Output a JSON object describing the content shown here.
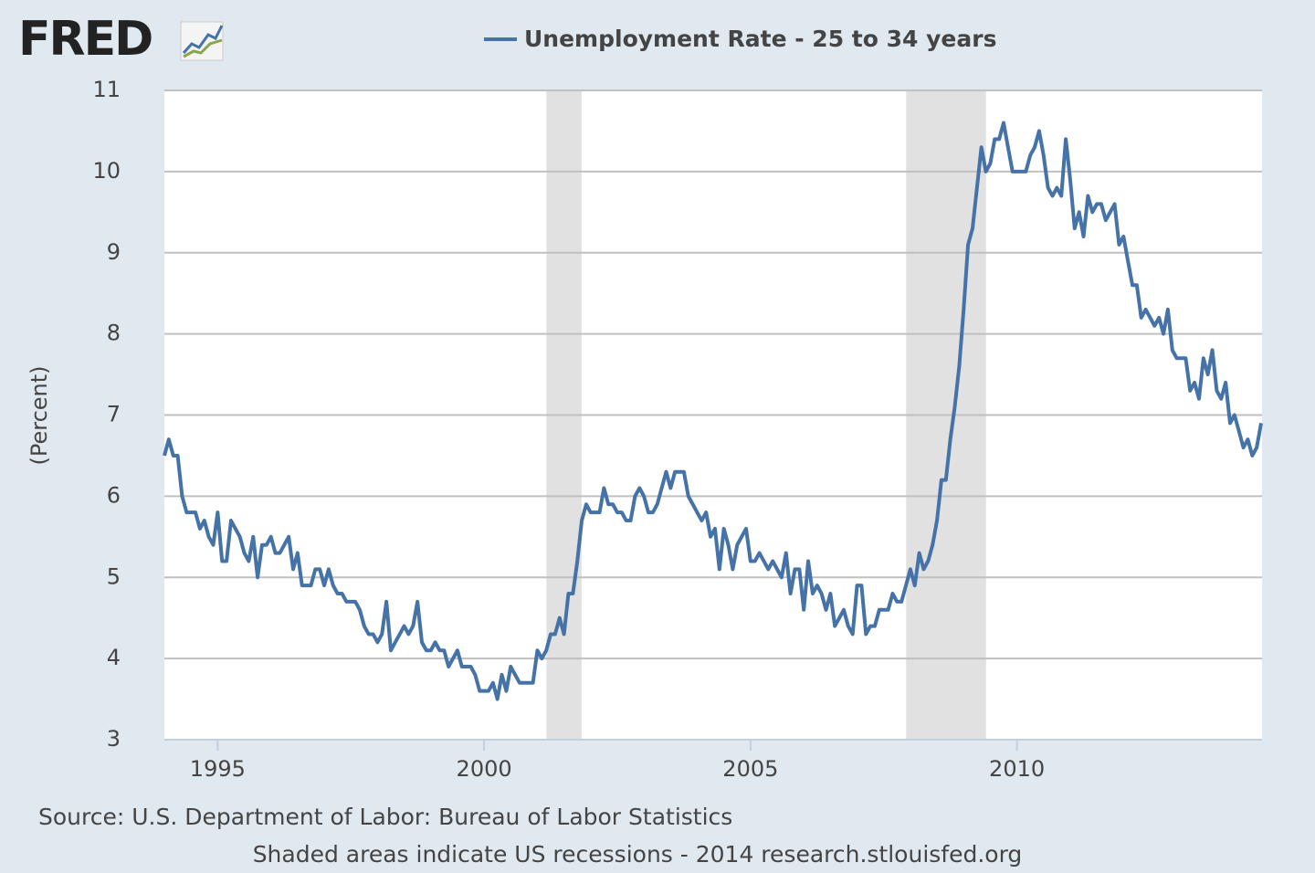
{
  "logo": "FRED",
  "chart_data": {
    "type": "line",
    "ylabel": "(Percent)",
    "source": "Source: U.S. Department of Labor: Bureau of Labor Statistics",
    "note": "Shaded areas indicate US recessions - 2014 research.stlouisfed.org",
    "xlim": [
      1994,
      2014.6
    ],
    "xticks": [
      1995,
      2000,
      2005,
      2010
    ],
    "ylim": [
      3,
      11
    ],
    "yticks": [
      3,
      4,
      5,
      6,
      7,
      8,
      9,
      10,
      11
    ],
    "grid": true,
    "recession_color": "#e1e1e1",
    "recessions": [
      [
        2001.17,
        2001.83
      ],
      [
        2007.92,
        2009.42
      ]
    ],
    "x": [
      1994,
      1994.083,
      1994.167,
      1994.25,
      1994.333,
      1994.417,
      1994.5,
      1994.583,
      1994.667,
      1994.75,
      1994.833,
      1994.917,
      1995,
      1995.083,
      1995.167,
      1995.25,
      1995.333,
      1995.417,
      1995.5,
      1995.583,
      1995.667,
      1995.75,
      1995.833,
      1995.917,
      1996,
      1996.083,
      1996.167,
      1996.25,
      1996.333,
      1996.417,
      1996.5,
      1996.583,
      1996.667,
      1996.75,
      1996.833,
      1996.917,
      1997,
      1997.083,
      1997.167,
      1997.25,
      1997.333,
      1997.417,
      1997.5,
      1997.583,
      1997.667,
      1997.75,
      1997.833,
      1997.917,
      1998,
      1998.083,
      1998.167,
      1998.25,
      1998.333,
      1998.417,
      1998.5,
      1998.583,
      1998.667,
      1998.75,
      1998.833,
      1998.917,
      1999,
      1999.083,
      1999.167,
      1999.25,
      1999.333,
      1999.417,
      1999.5,
      1999.583,
      1999.667,
      1999.75,
      1999.833,
      1999.917,
      2000,
      2000.083,
      2000.167,
      2000.25,
      2000.333,
      2000.417,
      2000.5,
      2000.583,
      2000.667,
      2000.75,
      2000.833,
      2000.917,
      2001,
      2001.083,
      2001.167,
      2001.25,
      2001.333,
      2001.417,
      2001.5,
      2001.583,
      2001.667,
      2001.75,
      2001.833,
      2001.917,
      2002,
      2002.083,
      2002.167,
      2002.25,
      2002.333,
      2002.417,
      2002.5,
      2002.583,
      2002.667,
      2002.75,
      2002.833,
      2002.917,
      2003,
      2003.083,
      2003.167,
      2003.25,
      2003.333,
      2003.417,
      2003.5,
      2003.583,
      2003.667,
      2003.75,
      2003.833,
      2003.917,
      2004,
      2004.083,
      2004.167,
      2004.25,
      2004.333,
      2004.417,
      2004.5,
      2004.583,
      2004.667,
      2004.75,
      2004.833,
      2004.917,
      2005,
      2005.083,
      2005.167,
      2005.25,
      2005.333,
      2005.417,
      2005.5,
      2005.583,
      2005.667,
      2005.75,
      2005.833,
      2005.917,
      2006,
      2006.083,
      2006.167,
      2006.25,
      2006.333,
      2006.417,
      2006.5,
      2006.583,
      2006.667,
      2006.75,
      2006.833,
      2006.917,
      2007,
      2007.083,
      2007.167,
      2007.25,
      2007.333,
      2007.417,
      2007.5,
      2007.583,
      2007.667,
      2007.75,
      2007.833,
      2007.917,
      2008,
      2008.083,
      2008.167,
      2008.25,
      2008.333,
      2008.417,
      2008.5,
      2008.583,
      2008.667,
      2008.75,
      2008.833,
      2008.917,
      2009,
      2009.083,
      2009.167,
      2009.25,
      2009.333,
      2009.417,
      2009.5,
      2009.583,
      2009.667,
      2009.75,
      2009.833,
      2009.917,
      2010,
      2010.083,
      2010.167,
      2010.25,
      2010.333,
      2010.417,
      2010.5,
      2010.583,
      2010.667,
      2010.75,
      2010.833,
      2010.917,
      2011,
      2011.083,
      2011.167,
      2011.25,
      2011.333,
      2011.417,
      2011.5,
      2011.583,
      2011.667,
      2011.75,
      2011.833,
      2011.917,
      2012,
      2012.083,
      2012.167,
      2012.25,
      2012.333,
      2012.417,
      2012.5,
      2012.583,
      2012.667,
      2012.75,
      2012.833,
      2012.917,
      2013,
      2013.083,
      2013.167,
      2013.25,
      2013.333,
      2013.417,
      2013.5,
      2013.583,
      2013.667,
      2013.75,
      2013.833,
      2013.917,
      2014,
      2014.083,
      2014.167,
      2014.25,
      2014.333,
      2014.417,
      2014.5,
      2014.583
    ],
    "series": [
      {
        "name": "Unemployment Rate - 25 to 34 years",
        "color": "#4572a7",
        "values": [
          6.5,
          6.7,
          6.5,
          6.5,
          6.0,
          5.8,
          5.8,
          5.8,
          5.6,
          5.7,
          5.5,
          5.4,
          5.8,
          5.2,
          5.2,
          5.7,
          5.6,
          5.5,
          5.3,
          5.2,
          5.5,
          5.0,
          5.4,
          5.4,
          5.5,
          5.3,
          5.3,
          5.4,
          5.5,
          5.1,
          5.3,
          4.9,
          4.9,
          4.9,
          5.1,
          5.1,
          4.9,
          5.1,
          4.9,
          4.8,
          4.8,
          4.7,
          4.7,
          4.7,
          4.6,
          4.4,
          4.3,
          4.3,
          4.2,
          4.3,
          4.7,
          4.1,
          4.2,
          4.3,
          4.4,
          4.3,
          4.4,
          4.7,
          4.2,
          4.1,
          4.1,
          4.2,
          4.1,
          4.1,
          3.9,
          4.0,
          4.1,
          3.9,
          3.9,
          3.9,
          3.8,
          3.6,
          3.6,
          3.6,
          3.7,
          3.5,
          3.8,
          3.6,
          3.9,
          3.8,
          3.7,
          3.7,
          3.7,
          3.7,
          4.1,
          4.0,
          4.1,
          4.3,
          4.3,
          4.5,
          4.3,
          4.8,
          4.8,
          5.2,
          5.7,
          5.9,
          5.8,
          5.8,
          5.8,
          6.1,
          5.9,
          5.9,
          5.8,
          5.8,
          5.7,
          5.7,
          6.0,
          6.1,
          6.0,
          5.8,
          5.8,
          5.9,
          6.1,
          6.3,
          6.1,
          6.3,
          6.3,
          6.3,
          6.0,
          5.9,
          5.8,
          5.7,
          5.8,
          5.5,
          5.6,
          5.1,
          5.6,
          5.4,
          5.1,
          5.4,
          5.5,
          5.6,
          5.2,
          5.2,
          5.3,
          5.2,
          5.1,
          5.2,
          5.1,
          5.0,
          5.3,
          4.8,
          5.1,
          5.1,
          4.6,
          5.2,
          4.8,
          4.9,
          4.8,
          4.6,
          4.8,
          4.4,
          4.5,
          4.6,
          4.4,
          4.3,
          4.9,
          4.9,
          4.3,
          4.4,
          4.4,
          4.6,
          4.6,
          4.6,
          4.8,
          4.7,
          4.7,
          4.9,
          5.1,
          4.9,
          5.3,
          5.1,
          5.2,
          5.4,
          5.7,
          6.2,
          6.2,
          6.7,
          7.1,
          7.6,
          8.3,
          9.1,
          9.3,
          9.8,
          10.3,
          10.0,
          10.1,
          10.4,
          10.4,
          10.6,
          10.3,
          10.0,
          10.0,
          10.0,
          10.0,
          10.2,
          10.3,
          10.5,
          10.2,
          9.8,
          9.7,
          9.8,
          9.7,
          10.4,
          9.9,
          9.3,
          9.5,
          9.2,
          9.7,
          9.5,
          9.6,
          9.6,
          9.4,
          9.5,
          9.6,
          9.1,
          9.2,
          8.9,
          8.6,
          8.6,
          8.2,
          8.3,
          8.2,
          8.1,
          8.2,
          8.0,
          8.3,
          7.8,
          7.7,
          7.7,
          7.7,
          7.3,
          7.4,
          7.2,
          7.7,
          7.5,
          7.8,
          7.3,
          7.2,
          7.4,
          6.9,
          7.0,
          6.8,
          6.6,
          6.7,
          6.5,
          6.6,
          6.9
        ]
      }
    ]
  }
}
